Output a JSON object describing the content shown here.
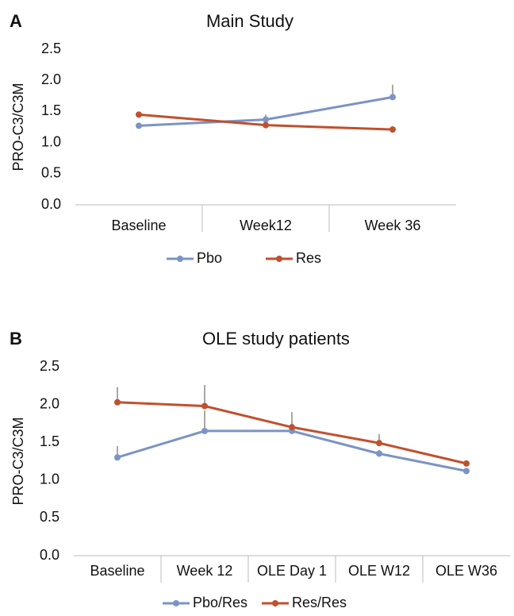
{
  "chart_data": [
    {
      "type": "line",
      "panel_label": "A",
      "title": "Main Study",
      "y_label": "PRO-C3/C3M",
      "categories": [
        "Baseline",
        "Week12",
        "Week 36"
      ],
      "series": [
        {
          "name": "Pbo",
          "color": "#7b93c6",
          "values": [
            1.27,
            1.37,
            1.73
          ],
          "errors": [
            0.05,
            0.08,
            0.2
          ]
        },
        {
          "name": "Res",
          "color": "#c0502e",
          "values": [
            1.45,
            1.28,
            1.21
          ],
          "errors": [
            0.04,
            0.04,
            0.03
          ]
        }
      ],
      "ylim": [
        0,
        2.5
      ],
      "yticks": [
        {
          "value": 0,
          "label": "0.0"
        },
        0.5,
        {
          "value": 1,
          "label": "1.0"
        },
        1.5,
        {
          "value": 2,
          "label": "2.0"
        },
        2.5
      ],
      "grid": false
    },
    {
      "type": "line",
      "panel_label": "B",
      "title": "OLE study patients",
      "y_label": "PRO-C3/C3M",
      "categories": [
        "Baseline",
        "Week 12",
        "OLE Day 1",
        "OLE W12",
        "OLE W36"
      ],
      "series": [
        {
          "name": "Pbo/Res",
          "color": "#7b93c6",
          "values": [
            1.3,
            1.65,
            1.65,
            1.35,
            1.12
          ],
          "errors": [
            0.15,
            0.27,
            0.05,
            0.05,
            0.02
          ]
        },
        {
          "name": "Res/Res",
          "color": "#c0502e",
          "values": [
            2.03,
            1.98,
            1.7,
            1.49,
            1.22
          ],
          "errors": [
            0.2,
            0.28,
            0.2,
            0.12,
            0.03
          ]
        }
      ],
      "ylim": [
        0,
        2.5
      ],
      "yticks": [
        {
          "value": 0,
          "label": "0.0"
        },
        0.5,
        {
          "value": 1,
          "label": "1.0"
        },
        1.5,
        {
          "value": 2,
          "label": "2.0"
        },
        2.5
      ],
      "grid": false
    }
  ]
}
